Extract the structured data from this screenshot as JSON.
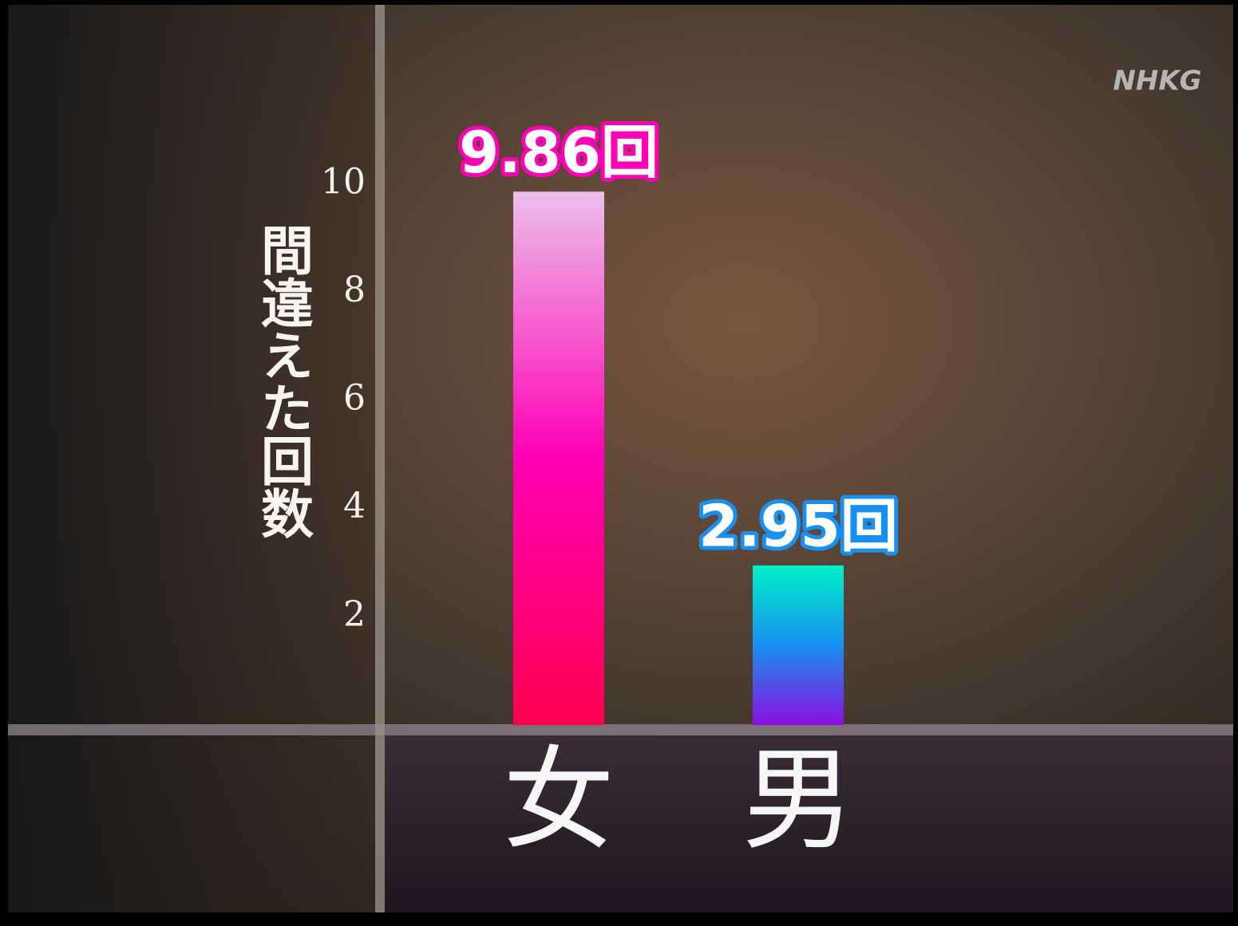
{
  "chart_data": {
    "type": "bar",
    "y_label": "間違えた回数",
    "watermark": "NHKG",
    "categories": [
      "女",
      "男"
    ],
    "values": [
      9.86,
      2.95
    ],
    "value_labels": [
      "9.86回",
      "2.95回"
    ],
    "colors": [
      [
        "#ecc0ea",
        "#ff00b4",
        "#ff0050"
      ],
      [
        "#00f0c8",
        "#1890f0",
        "#8a10e0"
      ]
    ],
    "ylim": [
      0,
      13.3
    ],
    "yticks": [
      2,
      4,
      6,
      8,
      10
    ],
    "grid": false
  }
}
